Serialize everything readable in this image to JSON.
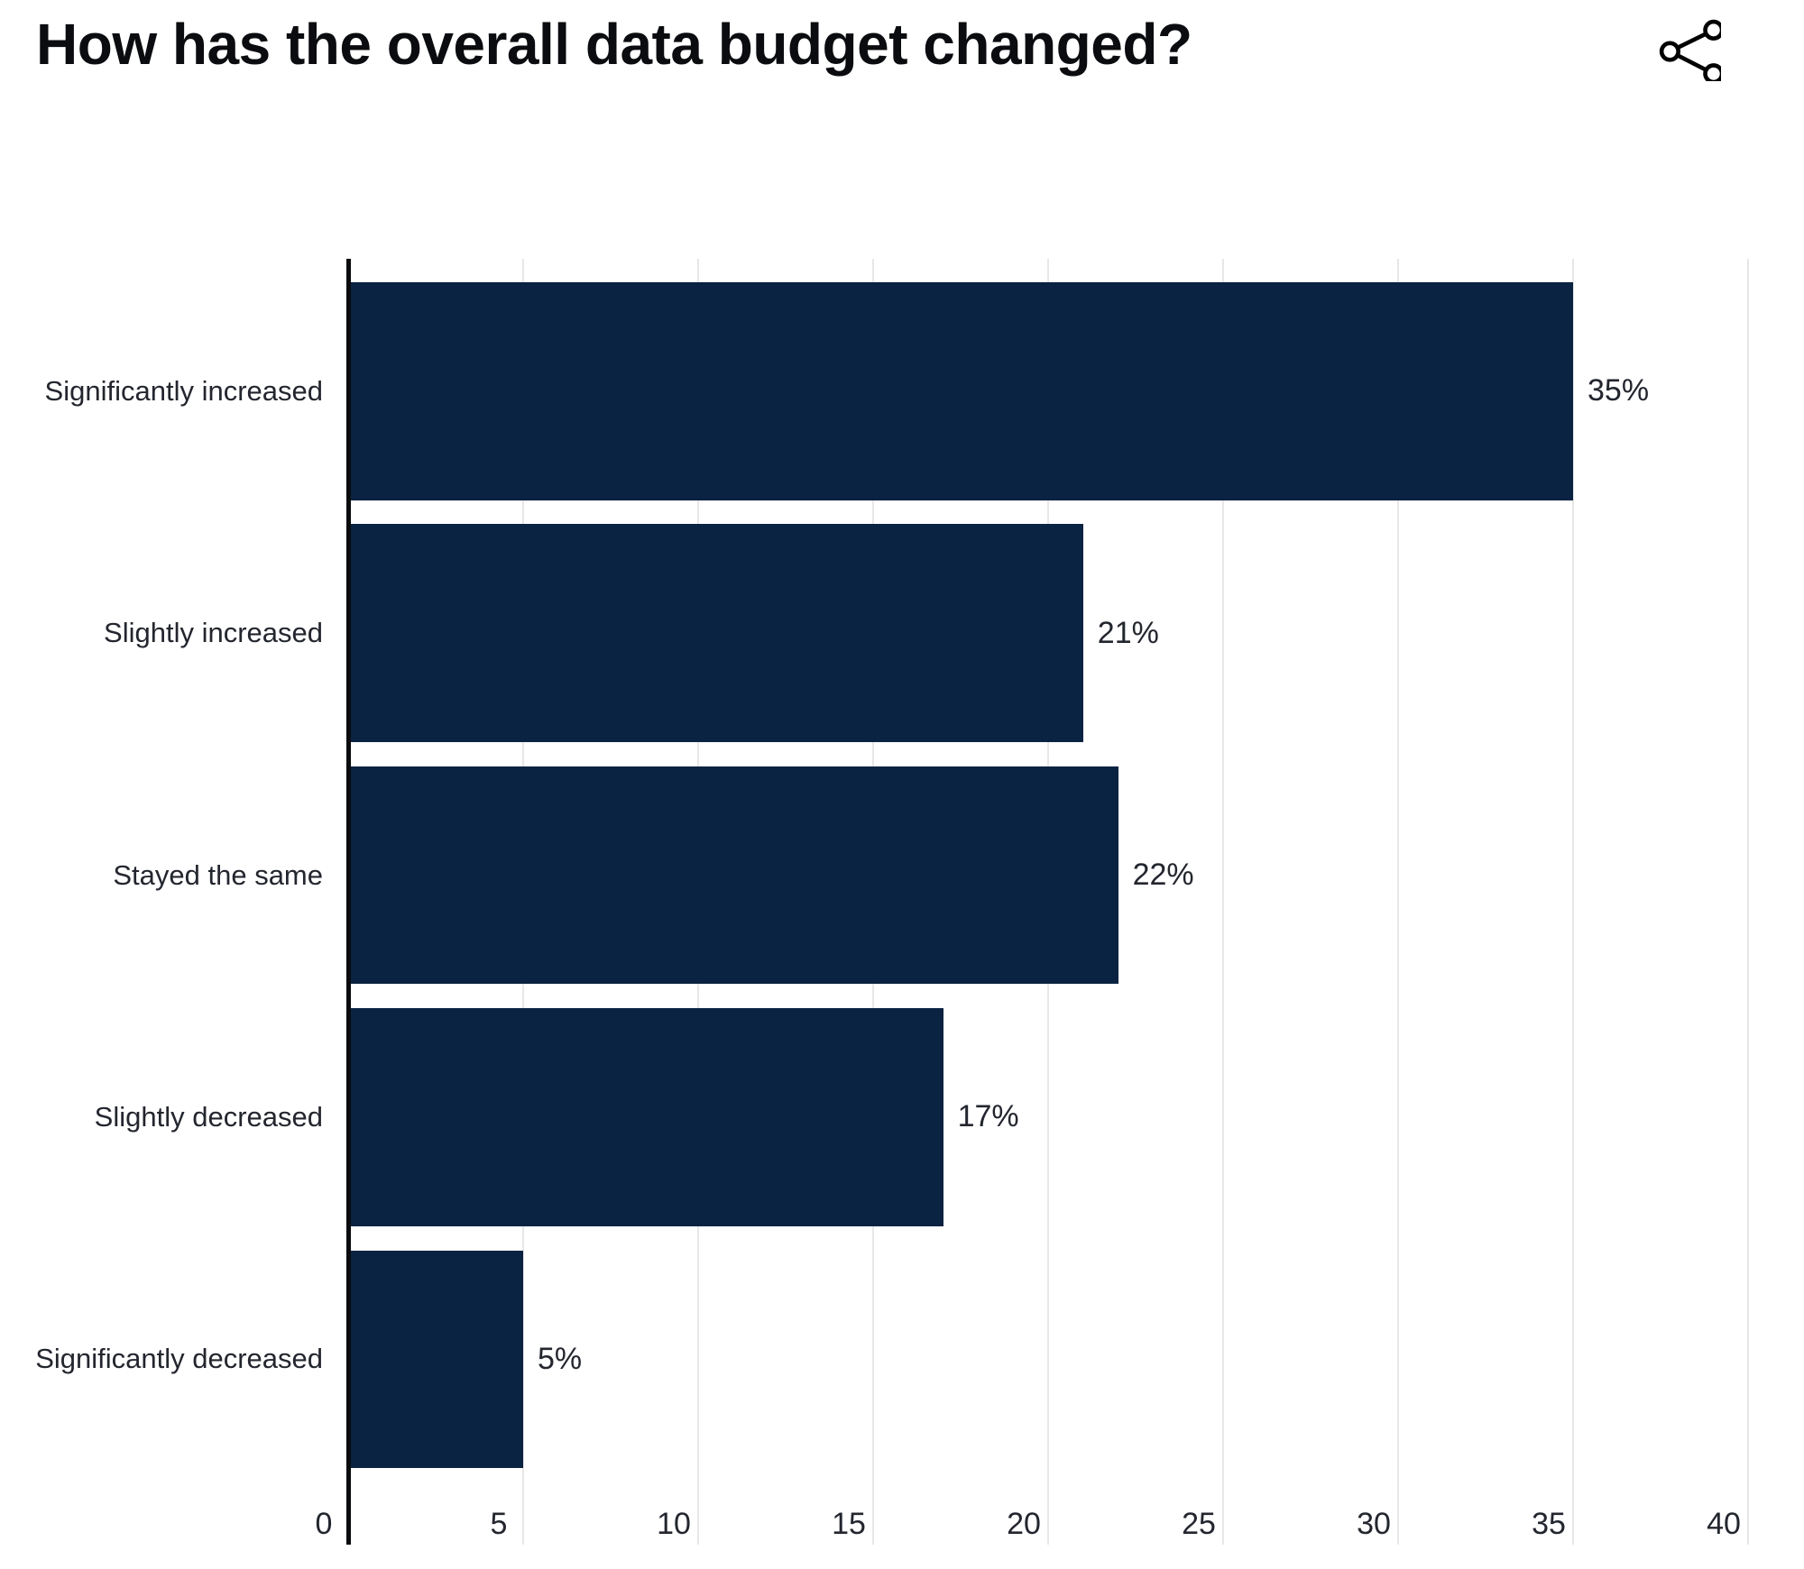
{
  "header": {
    "title": "How has the overall data budget changed?",
    "share_icon": "share-icon"
  },
  "chart_data": {
    "type": "bar",
    "orientation": "horizontal",
    "title": "How has the overall data budget changed?",
    "categories": [
      "Significantly increased",
      "Slightly increased",
      "Stayed the same",
      "Slightly decreased",
      "Significantly decreased"
    ],
    "values": [
      35,
      21,
      22,
      17,
      5
    ],
    "value_labels": [
      "35%",
      "21%",
      "22%",
      "17%",
      "5%"
    ],
    "xlabel": "",
    "ylabel": "",
    "xlim": [
      0,
      40
    ],
    "x_ticks": [
      0,
      5,
      10,
      15,
      20,
      25,
      30,
      35,
      40
    ],
    "grid": true,
    "legend": false,
    "bar_color": "#0b2342",
    "gridline_color": "#e7e7e7",
    "axis_line_color": "#0b0c0e",
    "text_color": "#23262e"
  }
}
